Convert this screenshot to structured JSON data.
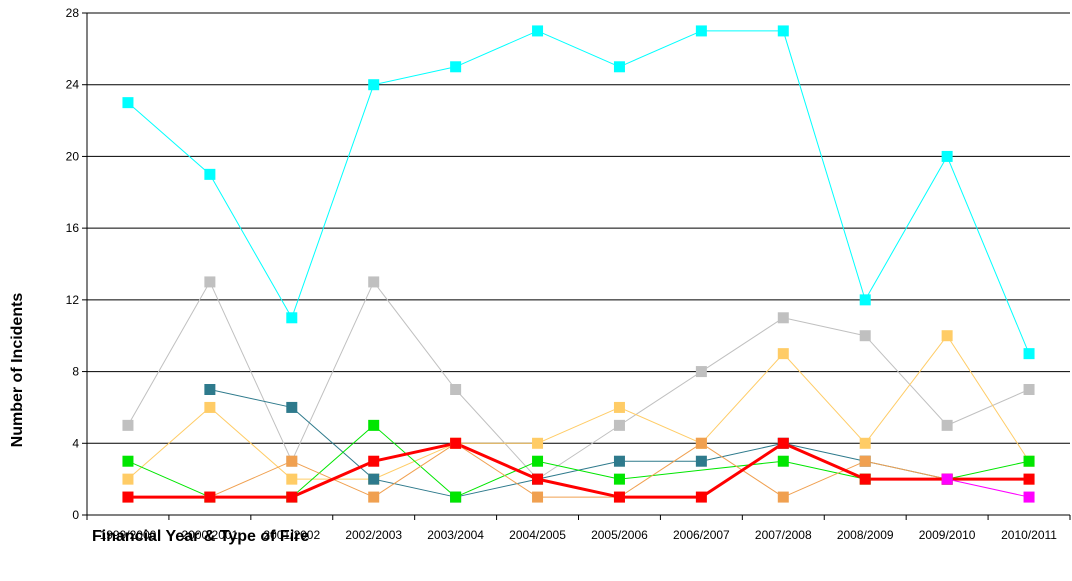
{
  "chart_data": {
    "type": "line",
    "title": "",
    "xlabel": "Financial Year & Type of Fire",
    "ylabel": "Number of Incidents",
    "ylim": [
      0,
      28
    ],
    "yticks": [
      0,
      4,
      8,
      12,
      16,
      20,
      24,
      28
    ],
    "grid": true,
    "legend": "none",
    "categories": [
      "1999/2000",
      "2000/2001",
      "2001/2002",
      "2002/2003",
      "2003/2004",
      "2004/2005",
      "2005/2006",
      "2006/2007",
      "2007/2008",
      "2008/2009",
      "2009/2010",
      "2010/2011"
    ],
    "series": [
      {
        "color": "#00FFFF",
        "line_width": 1,
        "values": [
          23,
          19,
          11,
          24,
          25,
          27,
          25,
          27,
          27,
          12,
          20,
          9
        ]
      },
      {
        "color": "#C0C0C0",
        "line_width": 1,
        "values": [
          5,
          13,
          3,
          13,
          7,
          2,
          5,
          8,
          11,
          10,
          5,
          7
        ]
      },
      {
        "color": "#FFCC66",
        "line_width": 1,
        "values": [
          2,
          6,
          2,
          2,
          4,
          4,
          6,
          4,
          9,
          4,
          10,
          3
        ]
      },
      {
        "color": "#2E7A8C",
        "line_width": 1,
        "values": [
          null,
          7,
          6,
          2,
          1,
          2,
          3,
          3,
          4,
          3,
          2,
          null
        ]
      },
      {
        "color": "#00E600",
        "line_width": 1,
        "values": [
          3,
          1,
          1,
          5,
          1,
          3,
          2,
          2.5,
          3,
          2,
          2,
          3
        ]
      },
      {
        "color": "#F0A050",
        "line_width": 1,
        "values": [
          1,
          1,
          3,
          1,
          4,
          1,
          1,
          4,
          1,
          3,
          2,
          2
        ]
      },
      {
        "color": "#FF0000",
        "line_width": 3,
        "values": [
          1,
          1,
          1,
          3,
          4,
          2,
          1,
          1,
          4,
          2,
          2,
          2
        ]
      },
      {
        "color": "#FF00FF",
        "line_width": 1,
        "values": [
          null,
          null,
          null,
          null,
          null,
          null,
          null,
          null,
          null,
          null,
          2,
          1
        ]
      }
    ]
  }
}
